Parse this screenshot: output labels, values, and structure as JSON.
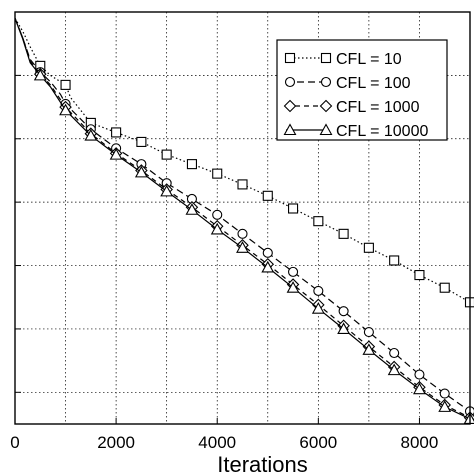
{
  "chart_data": {
    "type": "line",
    "xlabel": "Iterations",
    "ylabel": "",
    "xlim": [
      0,
      9000
    ],
    "ylim": [
      -6.5,
      0
    ],
    "x_ticks": [
      0,
      2000,
      4000,
      6000,
      8000
    ],
    "y_ticks": [
      -6,
      -5,
      -4,
      -3,
      -2,
      -1,
      0
    ],
    "grid": true,
    "legend_position": "top-right",
    "series": [
      {
        "name": "CFL = 10",
        "marker": "square",
        "line_style": "dotted",
        "x": [
          0,
          150,
          300,
          500,
          700,
          900,
          1000,
          1100,
          1300,
          1500,
          2000,
          2500,
          3000,
          3500,
          4000,
          4500,
          5000,
          5500,
          6000,
          6500,
          7000,
          7500,
          8000,
          8500,
          9000
        ],
        "y": [
          -0.1,
          -0.3,
          -0.55,
          -0.85,
          -1.0,
          -1.1,
          -1.15,
          -1.35,
          -1.55,
          -1.75,
          -1.9,
          -2.05,
          -2.25,
          -2.4,
          -2.55,
          -2.72,
          -2.9,
          -3.1,
          -3.3,
          -3.5,
          -3.72,
          -3.92,
          -4.15,
          -4.35,
          -4.58
        ]
      },
      {
        "name": "CFL = 100",
        "marker": "circle",
        "line_style": "dash",
        "x": [
          0,
          150,
          300,
          500,
          700,
          900,
          1000,
          1500,
          2000,
          2500,
          3000,
          3500,
          4000,
          4500,
          5000,
          5500,
          6000,
          6500,
          7000,
          7500,
          8000,
          8500,
          9000
        ],
        "y": [
          -0.1,
          -0.4,
          -0.75,
          -0.95,
          -1.1,
          -1.3,
          -1.45,
          -1.85,
          -2.15,
          -2.4,
          -2.7,
          -2.95,
          -3.2,
          -3.5,
          -3.8,
          -4.1,
          -4.4,
          -4.72,
          -5.05,
          -5.38,
          -5.72,
          -6.02,
          -6.3
        ]
      },
      {
        "name": "CFL = 1000",
        "marker": "diamond",
        "line_style": "dashed",
        "x": [
          0,
          150,
          300,
          500,
          700,
          1000,
          1500,
          2000,
          2500,
          3000,
          3500,
          4000,
          4500,
          5000,
          5500,
          6000,
          6500,
          7000,
          7500,
          8000,
          8500,
          9000
        ],
        "y": [
          -0.1,
          -0.4,
          -0.78,
          -0.98,
          -1.15,
          -1.5,
          -1.92,
          -2.23,
          -2.5,
          -2.8,
          -3.08,
          -3.38,
          -3.68,
          -3.98,
          -4.3,
          -4.62,
          -4.95,
          -5.28,
          -5.6,
          -5.92,
          -6.2,
          -6.4
        ]
      },
      {
        "name": "CFL = 10000",
        "marker": "triangle",
        "line_style": "solid",
        "x": [
          0,
          150,
          300,
          500,
          700,
          1000,
          1500,
          2000,
          2500,
          3000,
          3500,
          4000,
          4500,
          5000,
          5500,
          6000,
          6500,
          7000,
          7500,
          8000,
          8500,
          9000
        ],
        "y": [
          -0.1,
          -0.42,
          -0.8,
          -1.0,
          -1.18,
          -1.55,
          -1.95,
          -2.25,
          -2.53,
          -2.83,
          -3.12,
          -3.43,
          -3.72,
          -4.03,
          -4.35,
          -4.68,
          -5.0,
          -5.33,
          -5.65,
          -5.95,
          -6.23,
          -6.42
        ]
      }
    ]
  }
}
